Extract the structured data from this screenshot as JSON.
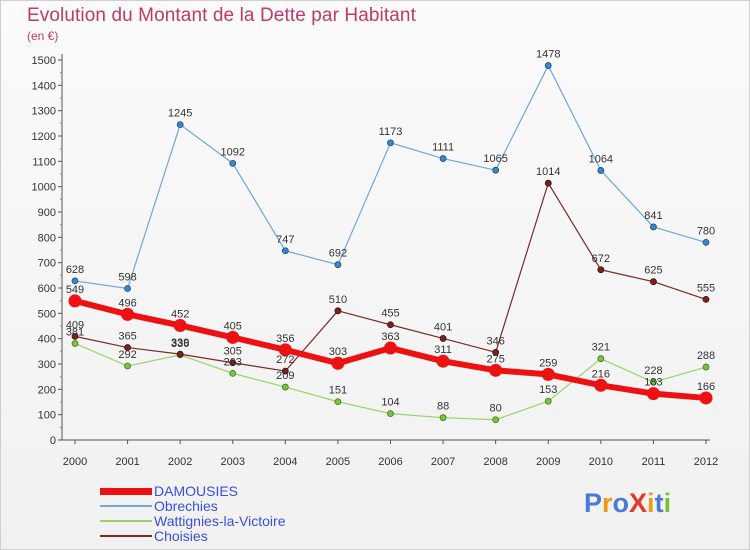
{
  "title": "Evolution du Montant de la Dette par Habitant",
  "unit": "(en €)",
  "brand": {
    "text": "ProXiti",
    "letter_colors": [
      "#4a7ad6",
      "#f09a1a",
      "#4a7ad6",
      "#e2392b",
      "#f09a1a",
      "#4a7ad6",
      "#7abf3a"
    ]
  },
  "chart_data": {
    "type": "line",
    "x": [
      "2000",
      "2001",
      "2002",
      "2003",
      "2004",
      "2005",
      "2006",
      "2007",
      "2008",
      "2009",
      "2010",
      "2011",
      "2012"
    ],
    "ylim": [
      0,
      1500
    ],
    "yticks": [
      0,
      100,
      200,
      300,
      400,
      500,
      600,
      700,
      800,
      900,
      1000,
      1100,
      1200,
      1300,
      1400,
      1500
    ],
    "grid": false,
    "legend_position": "bottom-left",
    "series": [
      {
        "name": "DAMOUSIES",
        "color": "#ee1111",
        "values": [
          549,
          496,
          452,
          405,
          356,
          303,
          363,
          311,
          275,
          259,
          216,
          183,
          166
        ],
        "labels": [
          "549",
          "496",
          "452",
          "405",
          "356",
          "303",
          "363",
          "311",
          "275",
          "259",
          "216",
          "183",
          "166"
        ]
      },
      {
        "name": "Obrechies",
        "color": "#6fa8dc",
        "values": [
          628,
          598,
          1245,
          1092,
          747,
          692,
          1173,
          1111,
          1065,
          1478,
          1064,
          841,
          780
        ],
        "labels": [
          "628",
          "598",
          "1245",
          "1092",
          "747",
          "692",
          "1173",
          "1111",
          "1065",
          "1478",
          "1064",
          "841",
          "780"
        ]
      },
      {
        "name": "Wattignies-la-Victoire",
        "color": "#9bd36a",
        "values": [
          381,
          292,
          336,
          263,
          209,
          151,
          104,
          88,
          80,
          153,
          321,
          228,
          288
        ],
        "labels": [
          "381",
          "292",
          "336",
          "263",
          "209",
          "151",
          "104",
          "88",
          "80",
          "153",
          "321",
          "228",
          "288"
        ]
      },
      {
        "name": "Choisies",
        "color": "#7b2a2a",
        "values": [
          409,
          365,
          339,
          305,
          272,
          510,
          455,
          401,
          346,
          1014,
          672,
          625,
          555
        ],
        "labels": [
          "409",
          "365",
          "339",
          "305",
          "272",
          "510",
          "455",
          "401",
          "346",
          "1014",
          "672",
          "625",
          "555"
        ]
      }
    ]
  }
}
